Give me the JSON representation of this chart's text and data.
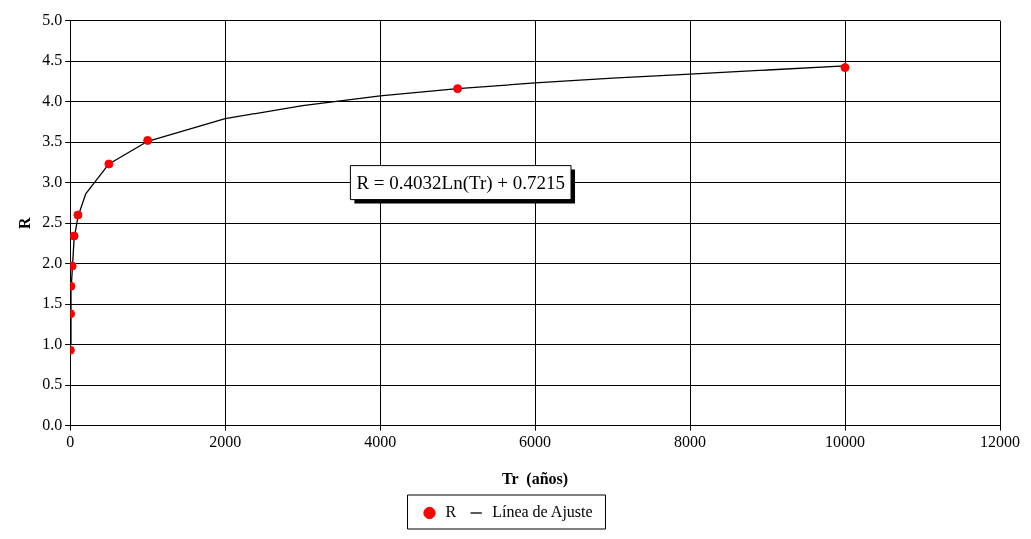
{
  "chart_data": {
    "type": "scatter",
    "xlabel": "Tr  (años)",
    "ylabel": "R",
    "xlim": [
      0,
      12000
    ],
    "xticks": [
      0,
      2000,
      4000,
      6000,
      8000,
      10000,
      12000
    ],
    "ylim": [
      0,
      5
    ],
    "yticks": [
      {
        "value": 0,
        "label": "0.0"
      },
      {
        "value": 0.5,
        "label": "0.5"
      },
      {
        "value": 1,
        "label": "1.0"
      },
      {
        "value": 1.5,
        "label": "1.5"
      },
      {
        "value": 2,
        "label": "2.0"
      },
      {
        "value": 2.5,
        "label": "2.5"
      },
      {
        "value": 3,
        "label": "3.0"
      },
      {
        "value": 3.5,
        "label": "3.5"
      },
      {
        "value": 4,
        "label": "4.0"
      },
      {
        "value": 4.5,
        "label": "4.5"
      },
      {
        "value": 5,
        "label": "5.0"
      }
    ],
    "grid": true,
    "legend": "bottom",
    "marker": "circle",
    "annotations": [
      "R = 0.4032Ln(Tr) + 0.7215"
    ],
    "series": [
      {
        "name": "R",
        "color": "#ff0000",
        "x": [
          2,
          5,
          10,
          25,
          50,
          100,
          500,
          1000,
          5000,
          10000
        ],
        "values": [
          0.93,
          1.38,
          1.72,
          1.97,
          2.34,
          2.6,
          3.23,
          3.52,
          4.16,
          4.42
        ]
      },
      {
        "name": "Línea de Ajuste",
        "type": "line",
        "color": "#000000",
        "marker": "none",
        "line_style": "solid",
        "x": [
          2,
          10,
          50,
          100,
          200,
          500,
          1000,
          2000,
          3000,
          4000,
          5000,
          6000,
          7000,
          8000,
          9000,
          10000
        ],
        "values": [
          1.0,
          1.65,
          2.3,
          2.58,
          2.86,
          3.23,
          3.51,
          3.79,
          3.95,
          4.07,
          4.16,
          4.23,
          4.29,
          4.34,
          4.39,
          4.44
        ]
      }
    ]
  }
}
